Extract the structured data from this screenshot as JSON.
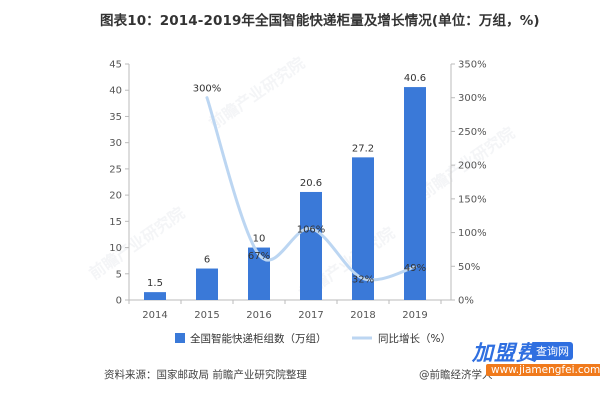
{
  "title": "图表10：2014-2019年全国智能快递柜量及增长情况(单位：万组，%)",
  "source_note": "资料来源：国家邮政局 前瞻产业研究院整理",
  "credit": "@前瞻经济学人",
  "watermark": "前瞻产业研究院",
  "brand": {
    "name": "加盟费",
    "tag": "查询网",
    "url": "www.jiamengfei.com"
  },
  "colors": {
    "bar": "#3a79d8",
    "line": "#bcd6f2",
    "axis": "#bbbbbb"
  },
  "chart_data": {
    "type": "bar",
    "categories": [
      "2014",
      "2015",
      "2016",
      "2017",
      "2018",
      "2019"
    ],
    "series": [
      {
        "name": "全国智能快递柜组数（万组）",
        "type": "bar",
        "axis": "left",
        "values": [
          1.5,
          6,
          10,
          20.6,
          27.2,
          40.6
        ],
        "labels": [
          "1.5",
          "6",
          "10",
          "20.6",
          "27.2",
          "40.6"
        ]
      },
      {
        "name": "同比增长（%）",
        "type": "line",
        "axis": "right",
        "smooth": true,
        "values": [
          null,
          300,
          67,
          106,
          32,
          49
        ],
        "labels": [
          "",
          "300%",
          "67%",
          "106%",
          "32%",
          "49%"
        ]
      }
    ],
    "y_left": {
      "min": 0,
      "max": 45,
      "step": 5
    },
    "y_right": {
      "min": 0,
      "max": 350,
      "step": 50,
      "suffix": "%"
    },
    "legend_position": "bottom",
    "grid": false
  }
}
